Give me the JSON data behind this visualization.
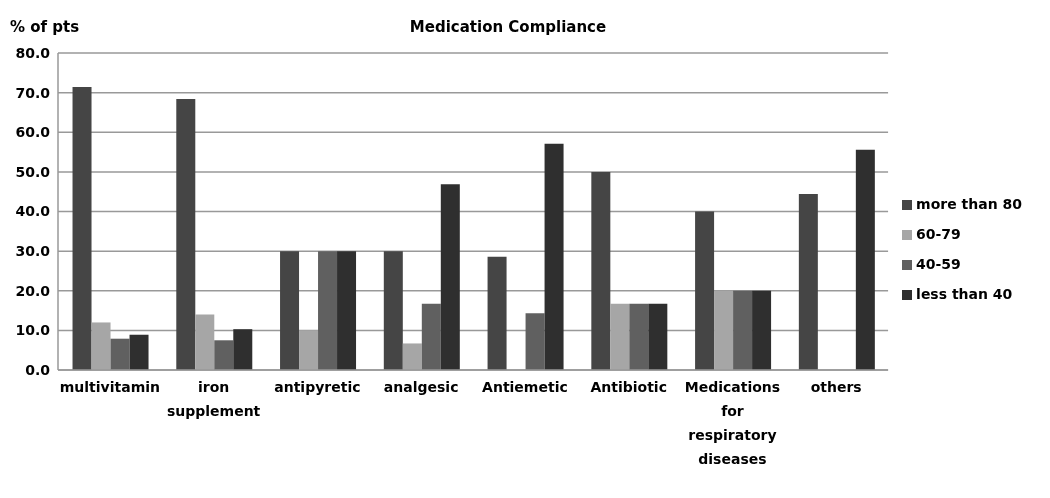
{
  "chart_data": {
    "type": "bar",
    "title": "Medication Compliance",
    "ylabel": "% of pts",
    "categories": [
      "multivitamin",
      "iron supplement",
      "antipyretic",
      "analgesic",
      "Antiemetic",
      "Antibiotic",
      "Medications for respiratory diseases",
      "others"
    ],
    "series": [
      {
        "name": "more than 80",
        "color": "#454545",
        "values": [
          71.4,
          68.4,
          30,
          30,
          28.6,
          50,
          40,
          44.4
        ]
      },
      {
        "name": "60-79",
        "color": "#a6a6a6",
        "values": [
          12,
          14,
          10,
          6.7,
          0,
          16.7,
          20,
          0
        ]
      },
      {
        "name": "40-59",
        "color": "#606060",
        "values": [
          7.9,
          7.5,
          30,
          16.7,
          14.3,
          16.7,
          20,
          0
        ]
      },
      {
        "name": "less than 40",
        "color": "#2f2f2f",
        "values": [
          8.9,
          10.3,
          30,
          46.9,
          57.1,
          16.7,
          20,
          55.6
        ]
      }
    ],
    "ylim": [
      0,
      80
    ],
    "yticks": [
      {
        "value": 0,
        "label": "0.0"
      },
      {
        "value": 10,
        "label": "10.0"
      },
      {
        "value": 20,
        "label": "20.0"
      },
      {
        "value": 30,
        "label": "30.0"
      },
      {
        "value": 40,
        "label": "40.0"
      },
      {
        "value": 50,
        "label": "50.0"
      },
      {
        "value": 60,
        "label": "60.0"
      },
      {
        "value": 70,
        "label": "70.0"
      },
      {
        "value": 80,
        "label": "80.0"
      }
    ],
    "grid": "y",
    "legend": "right"
  }
}
